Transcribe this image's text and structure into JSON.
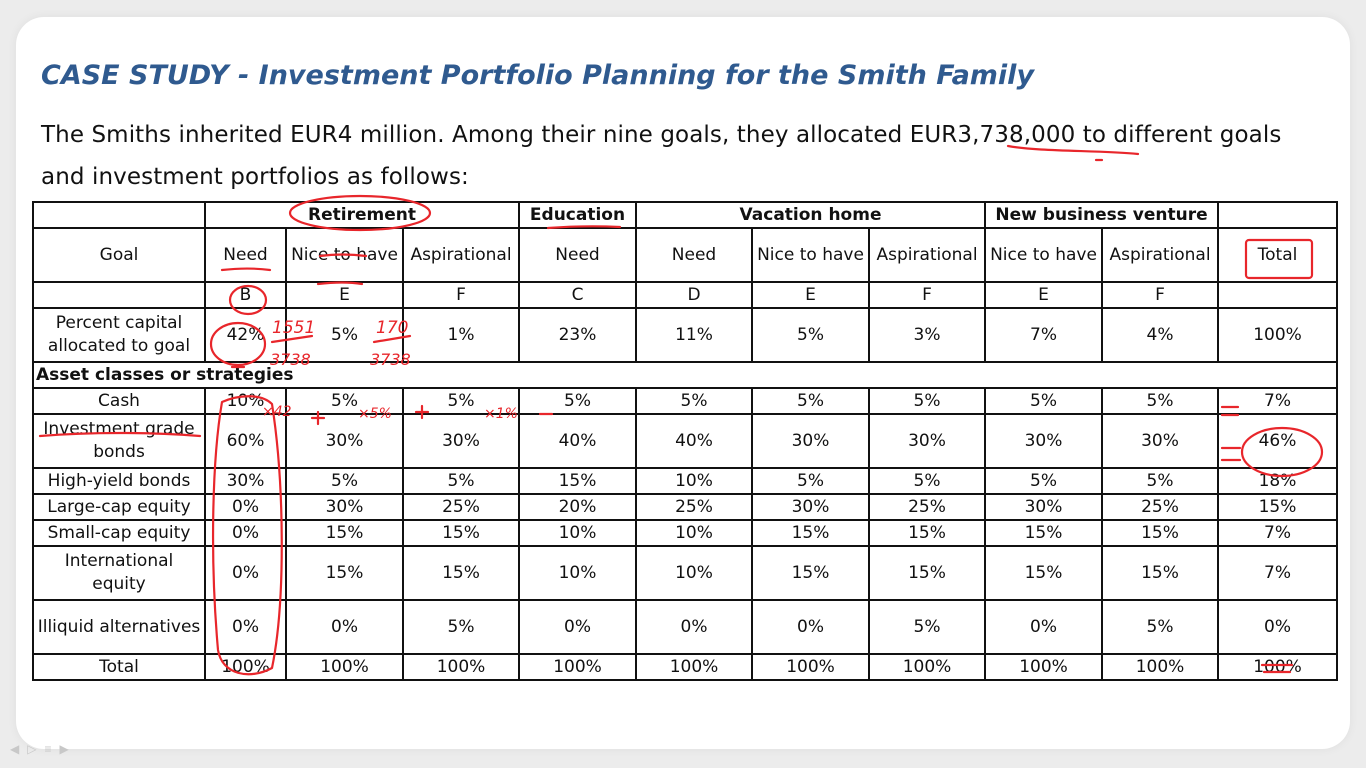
{
  "title": "CASE STUDY - Investment Portfolio Planning for the Smith Family",
  "intro": "The Smiths inherited EUR4 million. Among their nine goals, they allocated EUR3,738,000  to different goals and investment portfolios as follows:",
  "table": {
    "groups": [
      {
        "label": "",
        "span": 1
      },
      {
        "label": "Retirement",
        "span": 3
      },
      {
        "label": "Education",
        "span": 1
      },
      {
        "label": "Vacation home",
        "span": 3
      },
      {
        "label": "New business venture",
        "span": 2
      },
      {
        "label": "",
        "span": 1
      }
    ],
    "goal_label": "Goal",
    "goals": [
      "Need",
      "Nice to have",
      "Aspirational",
      "Need",
      "Need",
      "Nice to have",
      "Aspirational",
      "Nice to have",
      "Aspirational",
      "Total"
    ],
    "codes": [
      "B",
      "E",
      "F",
      "C",
      "D",
      "E",
      "F",
      "E",
      "F",
      ""
    ],
    "percent_label": "Percent capital allocated to goal",
    "percent": [
      "42%",
      "5%",
      "1%",
      "23%",
      "11%",
      "5%",
      "3%",
      "7%",
      "4%",
      "100%"
    ],
    "section_label": "Asset classes or strategies",
    "rows": [
      {
        "label": "Cash",
        "values": [
          "10%",
          "5%",
          "5%",
          "5%",
          "5%",
          "5%",
          "5%",
          "5%",
          "5%",
          "7%"
        ]
      },
      {
        "label": "Investment grade bonds",
        "values": [
          "60%",
          "30%",
          "30%",
          "40%",
          "40%",
          "30%",
          "30%",
          "30%",
          "30%",
          "46%"
        ]
      },
      {
        "label": "High-yield bonds",
        "values": [
          "30%",
          "5%",
          "5%",
          "15%",
          "10%",
          "5%",
          "5%",
          "5%",
          "5%",
          "18%"
        ]
      },
      {
        "label": "Large-cap equity",
        "values": [
          "0%",
          "30%",
          "25%",
          "20%",
          "25%",
          "30%",
          "25%",
          "30%",
          "25%",
          "15%"
        ]
      },
      {
        "label": "Small-cap equity",
        "values": [
          "0%",
          "15%",
          "15%",
          "10%",
          "10%",
          "15%",
          "15%",
          "15%",
          "15%",
          "7%"
        ]
      },
      {
        "label": "International equity",
        "values": [
          "0%",
          "15%",
          "15%",
          "10%",
          "10%",
          "15%",
          "15%",
          "15%",
          "15%",
          "7%"
        ]
      },
      {
        "label": "Illiquid alternatives",
        "values": [
          "0%",
          "0%",
          "5%",
          "0%",
          "0%",
          "0%",
          "5%",
          "0%",
          "5%",
          "0%"
        ]
      },
      {
        "label": "Total",
        "values": [
          "100%",
          "100%",
          "100%",
          "100%",
          "100%",
          "100%",
          "100%",
          "100%",
          "100%",
          "100%"
        ]
      }
    ]
  },
  "annotations": {
    "color": "#e8262b",
    "notes": [
      "1551",
      "3738",
      "170",
      "3738",
      "×42",
      "×5%",
      "×1%"
    ]
  },
  "nav_icons": [
    "prev-icon",
    "play-icon",
    "menu-icon",
    "next-icon"
  ]
}
